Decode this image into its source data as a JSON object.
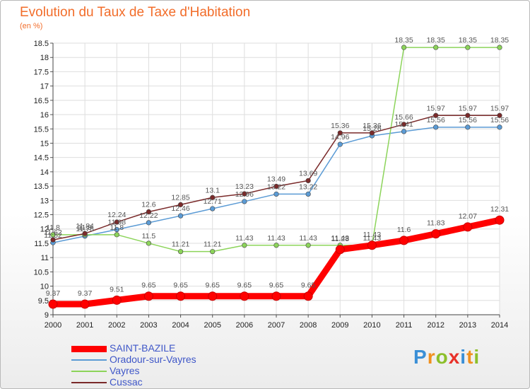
{
  "title": "Evolution du Taux de Taxe d'Habitation",
  "unit": "(en %)",
  "logo": {
    "text": "Proxiti",
    "colors": [
      "#3a8fd6",
      "#f0901e",
      "#8cbf2a",
      "#e8322a",
      "#3a8fd6",
      "#f0901e",
      "#8cbf2a"
    ]
  },
  "chart_data": {
    "type": "line",
    "x": [
      "2000",
      "2001",
      "2002",
      "2003",
      "2004",
      "2005",
      "2006",
      "2007",
      "2008",
      "2009",
      "2010",
      "2011",
      "2012",
      "2013",
      "2014"
    ],
    "ylim": [
      9,
      18.5
    ],
    "yticks": [
      "9",
      "9.5",
      "10",
      "10.5",
      "11",
      "11.5",
      "12",
      "12.5",
      "13",
      "13.5",
      "14",
      "14.5",
      "15",
      "15.5",
      "16",
      "16.5",
      "17",
      "17.5",
      "18",
      "18.5"
    ],
    "grid": true,
    "legend_position": "bottom-left",
    "series": [
      {
        "name": "SAINT-BAZILE",
        "color": "#ff0000",
        "emphasis": true,
        "values": [
          9.37,
          9.37,
          9.51,
          9.65,
          9.65,
          9.65,
          9.65,
          9.65,
          9.65,
          11.28,
          11.43,
          11.6,
          11.83,
          12.07,
          12.31
        ],
        "labels": [
          "9.37",
          "9.37",
          "9.51",
          "9.65",
          "9.65",
          "9.65",
          "9.65",
          "9.65",
          "9.65",
          "11.28",
          "11.43",
          "11.6",
          "11.83",
          "12.07",
          "12.31"
        ]
      },
      {
        "name": "Oradour-sur-Vayres",
        "color": "#5b9bd5",
        "emphasis": false,
        "values": [
          11.52,
          11.75,
          11.98,
          12.22,
          12.46,
          12.71,
          12.96,
          13.22,
          13.22,
          14.96,
          15.26,
          15.41,
          15.56,
          15.56,
          15.56
        ],
        "labels": [
          "11.52",
          "11.75",
          "11.98",
          "12.22",
          "12.46",
          "12.71",
          "12.96",
          "13.22",
          "13.22",
          "14.96",
          "15.26",
          "15.41",
          "15.56",
          "15.56",
          "15.56"
        ]
      },
      {
        "name": "Vayres",
        "color": "#8cd45a",
        "emphasis": false,
        "values": [
          11.8,
          11.8,
          11.8,
          11.5,
          11.21,
          11.21,
          11.43,
          11.43,
          11.43,
          11.43,
          11.43,
          18.35,
          18.35,
          18.35,
          18.35
        ],
        "labels": [
          "11.8",
          "11.8",
          "11.8",
          "11.5",
          "11.21",
          "11.21",
          "11.43",
          "11.43",
          "11.43",
          "11.43",
          "11.43",
          "18.35",
          "18.35",
          "18.35",
          "18.35"
        ]
      },
      {
        "name": "Cussac",
        "color": "#7a2a2a",
        "emphasis": false,
        "values": [
          11.62,
          11.84,
          12.24,
          12.6,
          12.85,
          13.1,
          13.23,
          13.49,
          13.69,
          15.36,
          15.36,
          15.66,
          15.97,
          15.97,
          15.97
        ],
        "labels": [
          "11.62",
          "11.84",
          "12.24",
          "12.6",
          "12.85",
          "13.1",
          "13.23",
          "13.49",
          "13.69",
          "15.36",
          "15.36",
          "15.66",
          "15.97",
          "15.97",
          "15.97"
        ]
      }
    ]
  },
  "legend": [
    {
      "label": "SAINT-BAZILE",
      "color": "#ff0000"
    },
    {
      "label": "Oradour-sur-Vayres",
      "color": "#5b9bd5"
    },
    {
      "label": "Vayres",
      "color": "#8cd45a"
    },
    {
      "label": "Cussac",
      "color": "#7a2a2a"
    }
  ]
}
